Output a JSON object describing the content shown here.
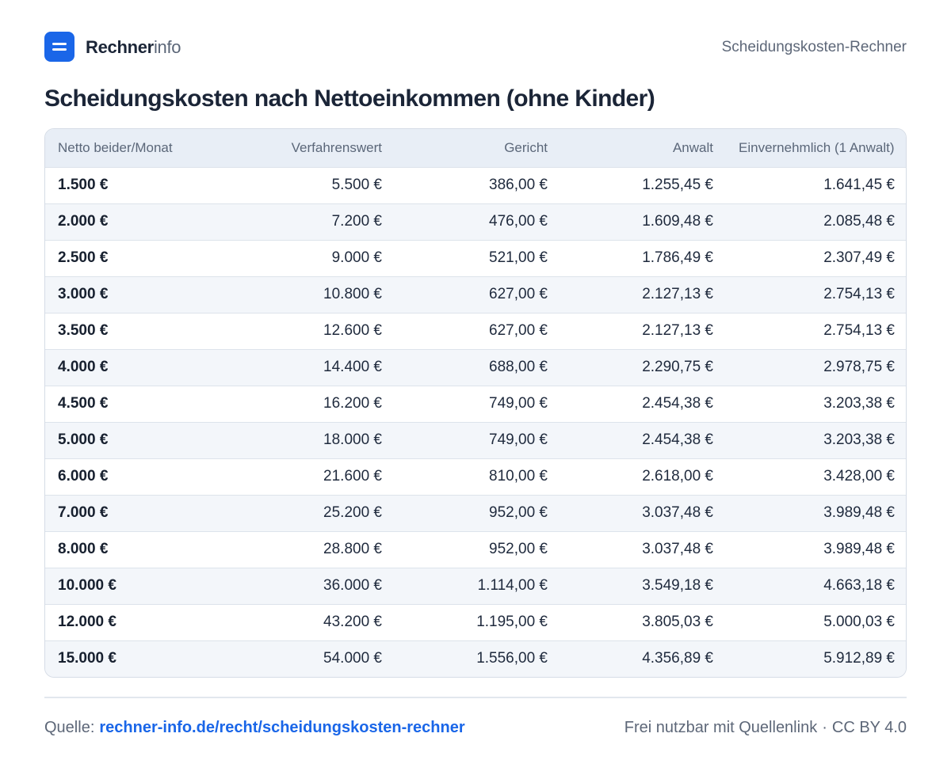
{
  "brand": {
    "name_strong": "Rechner",
    "name_light": "info"
  },
  "header": {
    "right_label": "Scheidungskosten-Rechner"
  },
  "title": "Scheidungskosten nach Nettoeinkommen (ohne Kinder)",
  "table": {
    "columns": [
      "Netto beider/Monat",
      "Verfahrenswert",
      "Gericht",
      "Anwalt",
      "Einvernehmlich (1 Anwalt)"
    ],
    "rows": [
      [
        "1.500 €",
        "5.500 €",
        "386,00 €",
        "1.255,45 €",
        "1.641,45 €"
      ],
      [
        "2.000 €",
        "7.200 €",
        "476,00 €",
        "1.609,48 €",
        "2.085,48 €"
      ],
      [
        "2.500 €",
        "9.000 €",
        "521,00 €",
        "1.786,49 €",
        "2.307,49 €"
      ],
      [
        "3.000 €",
        "10.800 €",
        "627,00 €",
        "2.127,13 €",
        "2.754,13 €"
      ],
      [
        "3.500 €",
        "12.600 €",
        "627,00 €",
        "2.127,13 €",
        "2.754,13 €"
      ],
      [
        "4.000 €",
        "14.400 €",
        "688,00 €",
        "2.290,75 €",
        "2.978,75 €"
      ],
      [
        "4.500 €",
        "16.200 €",
        "749,00 €",
        "2.454,38 €",
        "3.203,38 €"
      ],
      [
        "5.000 €",
        "18.000 €",
        "749,00 €",
        "2.454,38 €",
        "3.203,38 €"
      ],
      [
        "6.000 €",
        "21.600 €",
        "810,00 €",
        "2.618,00 €",
        "3.428,00 €"
      ],
      [
        "7.000 €",
        "25.200 €",
        "952,00 €",
        "3.037,48 €",
        "3.989,48 €"
      ],
      [
        "8.000 €",
        "28.800 €",
        "952,00 €",
        "3.037,48 €",
        "3.989,48 €"
      ],
      [
        "10.000 €",
        "36.000 €",
        "1.114,00 €",
        "3.549,18 €",
        "4.663,18 €"
      ],
      [
        "12.000 €",
        "43.200 €",
        "1.195,00 €",
        "3.805,03 €",
        "5.000,03 €"
      ],
      [
        "15.000 €",
        "54.000 €",
        "1.556,00 €",
        "4.356,89 €",
        "5.912,89 €"
      ]
    ]
  },
  "footer": {
    "source_label": "Quelle:",
    "source_link": "rechner-info.de/recht/scheidungskosten-rechner",
    "license_text": "Frei nutzbar mit Quellenlink",
    "separator": "·",
    "license": "CC BY 4.0"
  },
  "colors": {
    "accent": "#1a66e8",
    "header_row_bg": "#e8eef6",
    "alt_row_bg": "#f3f6fa",
    "text": "#1f2a3d",
    "muted_text": "#5d6778"
  },
  "icons": {
    "logo": "calculator-logo-icon"
  }
}
